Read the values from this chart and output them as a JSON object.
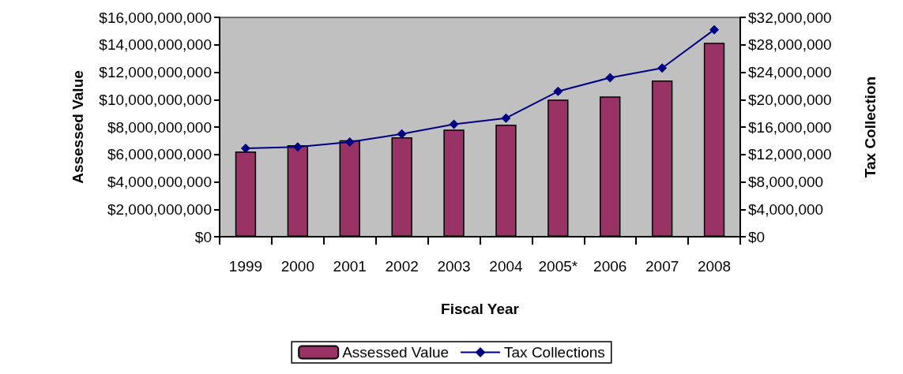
{
  "chart_data": {
    "type": "bar",
    "xlabel": "Fiscal Year",
    "ylabel": "Assessed Value",
    "y2label": "Tax Collection",
    "categories": [
      "1999",
      "2000",
      "2001",
      "2002",
      "2003",
      "2004",
      "2005*",
      "2006",
      "2007",
      "2008"
    ],
    "series": [
      {
        "name": "Assessed Value",
        "color": "#993366",
        "values": [
          6220000000,
          6680000000,
          7040000000,
          7250000000,
          7810000000,
          8170000000,
          10000000000,
          10230000000,
          11390000000,
          14140000000
        ]
      },
      {
        "name": "Tax Collections",
        "type": "line",
        "axis": "y2",
        "color": "#000080",
        "marker": "diamond",
        "values": [
          12900000,
          13100000,
          13800000,
          15000000,
          16400000,
          17300000,
          21200000,
          23200000,
          24600000,
          30200000
        ]
      }
    ],
    "ylim": [
      0,
      16000000000
    ],
    "yticks": [
      {
        "value": 0,
        "label": "$0"
      },
      {
        "value": 2000000000,
        "label": "$2,000,000,000"
      },
      {
        "value": 4000000000,
        "label": "$4,000,000,000"
      },
      {
        "value": 6000000000,
        "label": "$6,000,000,000"
      },
      {
        "value": 8000000000,
        "label": "$8,000,000,000"
      },
      {
        "value": 10000000000,
        "label": "$10,000,000,000"
      },
      {
        "value": 12000000000,
        "label": "$12,000,000,000"
      },
      {
        "value": 14000000000,
        "label": "$14,000,000,000"
      },
      {
        "value": 16000000000,
        "label": "$16,000,000,000"
      }
    ],
    "y2lim": [
      0,
      32000000
    ],
    "y2ticks": [
      {
        "value": 0,
        "label": "$0"
      },
      {
        "value": 4000000,
        "label": "$4,000,000"
      },
      {
        "value": 8000000,
        "label": "$8,000,000"
      },
      {
        "value": 12000000,
        "label": "$12,000,000"
      },
      {
        "value": 16000000,
        "label": "$16,000,000"
      },
      {
        "value": 20000000,
        "label": "$20,000,000"
      },
      {
        "value": 24000000,
        "label": "$24,000,000"
      },
      {
        "value": 28000000,
        "label": "$28,000,000"
      },
      {
        "value": 32000000,
        "label": "$32,000,000"
      }
    ],
    "grid": false,
    "legend": "bottom"
  }
}
